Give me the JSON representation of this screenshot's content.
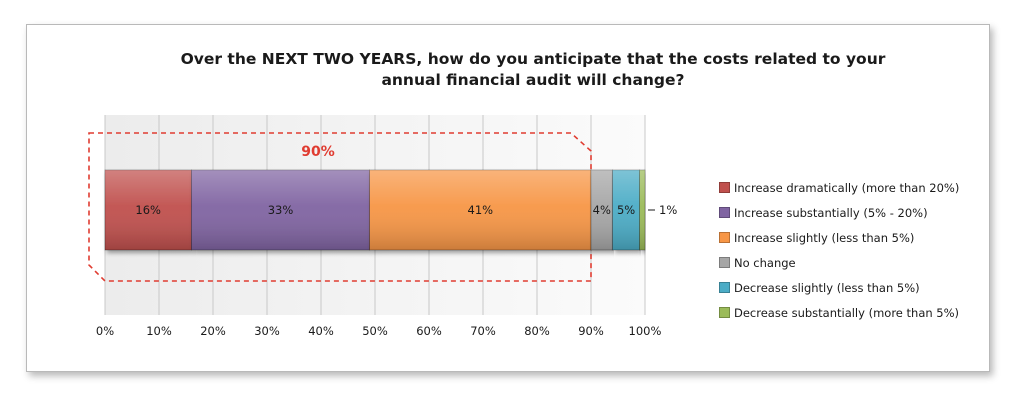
{
  "chart_data": {
    "type": "bar",
    "orientation": "horizontal",
    "stacked": true,
    "title_lines": [
      "Over the NEXT TWO YEARS, how do you anticipate that the costs related to your",
      "annual financial audit will change?"
    ],
    "xlim": [
      0,
      100
    ],
    "x_ticks": [
      "0%",
      "10%",
      "20%",
      "30%",
      "40%",
      "50%",
      "60%",
      "70%",
      "80%",
      "90%",
      "100%"
    ],
    "grid": "vertical",
    "legend_position": "right",
    "series": [
      {
        "name": "Increase dramatically (more than 20%)",
        "value": 16,
        "label": "16%",
        "color": "#c0504d"
      },
      {
        "name": "Increase substantially (5% - 20%)",
        "value": 33,
        "label": "33%",
        "color": "#8064a2"
      },
      {
        "name": "Increase slightly (less than 5%)",
        "value": 41,
        "label": "41%",
        "color": "#f79646"
      },
      {
        "name": "No change",
        "value": 4,
        "label": "4%",
        "color": "#a6a6a6"
      },
      {
        "name": "Decrease slightly (less than 5%)",
        "value": 5,
        "label": "5%",
        "color": "#4bacc6"
      },
      {
        "name": "Decrease substantially (more than 5%)",
        "value": 1,
        "label": "1%",
        "color": "#9bbb59"
      }
    ],
    "annotation": {
      "text": "90%",
      "color": "#e03c31"
    }
  }
}
